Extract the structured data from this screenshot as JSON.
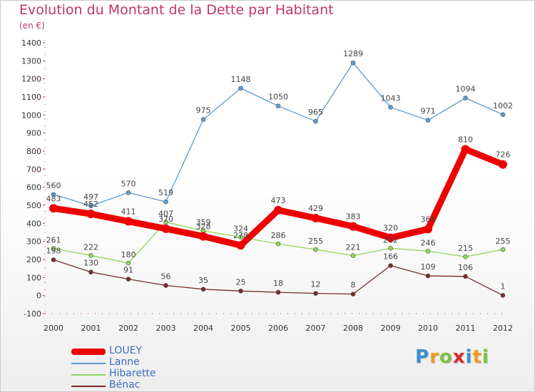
{
  "header": {
    "title": "Evolution du Montant de la Dette par Habitant",
    "subtitle": "(en €)"
  },
  "logo": {
    "text": "Proxiti",
    "letters": [
      "P",
      "r",
      "o",
      "x",
      "i",
      "t",
      "i"
    ],
    "colors": [
      "#3a8fd0",
      "#f29a22",
      "#7cc23f",
      "#e2252b",
      "#3a8fd0",
      "#f29a22",
      "#7cc23f"
    ]
  },
  "chart_data": {
    "type": "line",
    "title": "Evolution du Montant de la Dette par Habitant",
    "ylabel": "(en €)",
    "xlabel": "",
    "categories": [
      "2000",
      "2001",
      "2002",
      "2003",
      "2004",
      "2005",
      "2006",
      "2007",
      "2008",
      "2009",
      "2010",
      "2011",
      "2012"
    ],
    "ylim": [
      -100,
      1400
    ],
    "yticks": [
      -100,
      0,
      100,
      200,
      300,
      400,
      500,
      600,
      700,
      800,
      900,
      1000,
      1100,
      1200,
      1300,
      1400
    ],
    "grid": false,
    "legend_position": "bottom-left",
    "series": [
      {
        "name": "LOUEY",
        "color": "#ee0000",
        "values": [
          483,
          452,
          411,
          370,
          328,
          278,
          473,
          429,
          383,
          320,
          368,
          810,
          726
        ],
        "labels": [
          "483",
          "452",
          "411",
          "370",
          "328",
          "278",
          "473",
          "429",
          "383",
          "320",
          "368",
          "810",
          "726"
        ]
      },
      {
        "name": "Lanne",
        "color": "#5b9bd1",
        "values": [
          560,
          497,
          570,
          519,
          975,
          1148,
          1050,
          965,
          1289,
          1043,
          971,
          1094,
          1002
        ],
        "labels": [
          "560",
          "497",
          "570",
          "519",
          "975",
          "1148",
          "1050",
          "965",
          "1289",
          "1043",
          "971",
          "1094",
          "1002"
        ]
      },
      {
        "name": "Hibarette",
        "color": "#8fd85a",
        "values": [
          261,
          222,
          180,
          407,
          359,
          324,
          286,
          255,
          221,
          262,
          246,
          215,
          255
        ],
        "labels": [
          "261",
          "222",
          "180",
          "407",
          "359",
          "324",
          "286",
          "255",
          "221",
          "262",
          "246",
          "215",
          "255"
        ]
      },
      {
        "name": "Bénac",
        "color": "#7a2a2a",
        "values": [
          198,
          130,
          91,
          56,
          35,
          25,
          18,
          12,
          8,
          166,
          109,
          106,
          1
        ],
        "labels": [
          "198",
          "130",
          "91",
          "56",
          "35",
          "25",
          "18",
          "12",
          "8",
          "166",
          "109",
          "106",
          "1"
        ]
      }
    ]
  }
}
